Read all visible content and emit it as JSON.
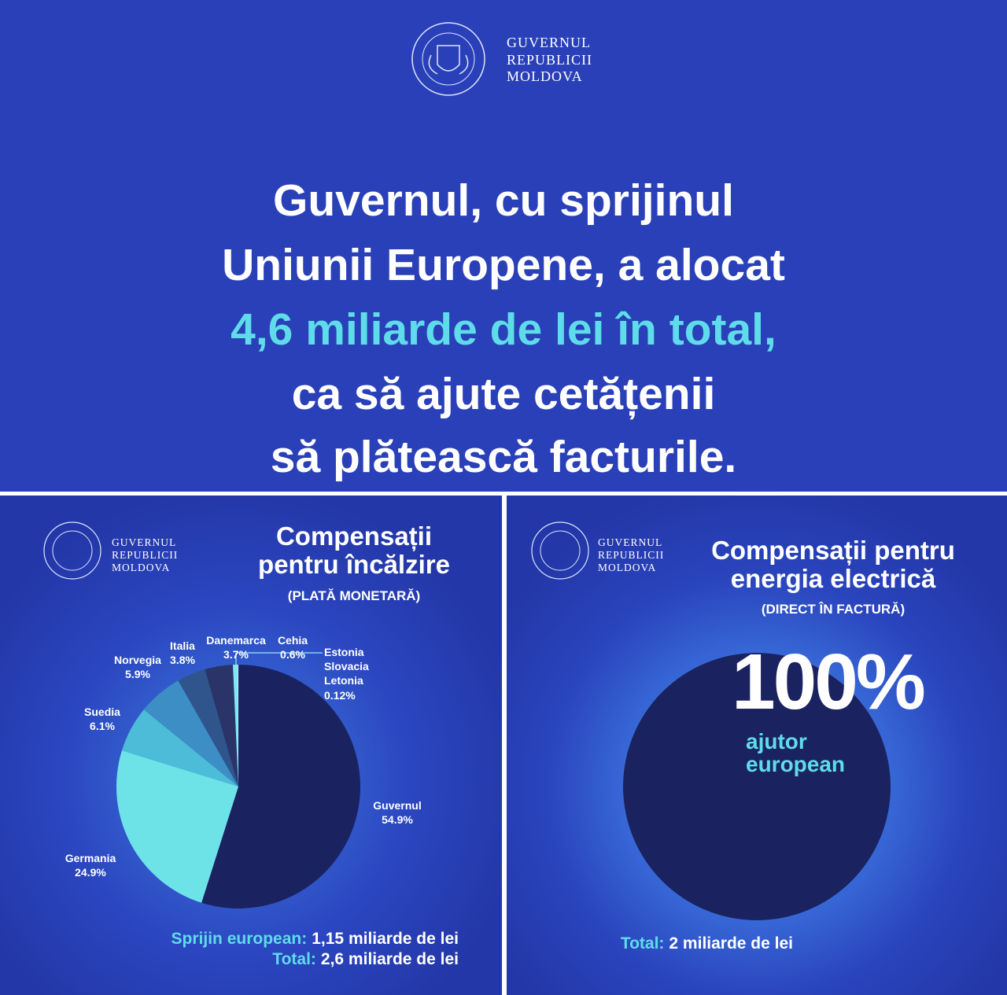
{
  "header": {
    "logo_text": [
      "GUVERNUL",
      "REPUBLICII",
      "MOLDOVA"
    ],
    "emblem_text": [
      "GUVERNUL",
      "REPUBLICII MOLDOVA"
    ],
    "headline": [
      "Guvernul, cu sprijinul",
      "Uniunii Europene, a alocat",
      "4,6 miliarde de lei în total,",
      "ca să ajute cetățenii",
      "să plătească facturile."
    ]
  },
  "chart_data": [
    {
      "type": "pie",
      "logo_text": [
        "GUVERNUL",
        "REPUBLICII",
        "MOLDOVA"
      ],
      "title": [
        "Compensații",
        "pentru încălzire"
      ],
      "subtitle": "(PLATĂ MONETARĂ)",
      "categories": [
        "Guvernul",
        "Germania",
        "Suedia",
        "Norvegia",
        "Italia",
        "Danemarca",
        "Cehia",
        "Estonia\nSlovacia\nLetonia"
      ],
      "values": [
        54.9,
        24.9,
        6.1,
        5.9,
        3.8,
        3.7,
        0.6,
        0.12
      ],
      "value_labels": [
        "54.9%",
        "24.9%",
        "6.1%",
        "5.9%",
        "3.8%",
        "3.7%",
        "0.6%",
        "0.12%"
      ],
      "colors": [
        "#1b2260",
        "#6de3e8",
        "#4dbcd8",
        "#3c8ec4",
        "#30548c",
        "#2a3468",
        "#7fe8f5",
        "#bff6ff"
      ],
      "footer": [
        {
          "label": "Sprijin european:",
          "text": "1,15 miliarde de lei"
        },
        {
          "label": "Total:",
          "text": "2,6 miliarde de lei"
        }
      ]
    },
    {
      "type": "pie",
      "logo_text": [
        "GUVERNUL",
        "REPUBLICII",
        "MOLDOVA"
      ],
      "title": [
        "Compensații pentru",
        "energia electrică"
      ],
      "subtitle": "(DIRECT ÎN FACTURĂ)",
      "categories": [
        "ajutor\neuropean"
      ],
      "values": [
        100
      ],
      "value_labels": [
        "100%"
      ],
      "colors": [
        "#1b2260"
      ],
      "footer": [
        {
          "label": "Total:",
          "text": "2 miliarde de lei"
        }
      ]
    }
  ]
}
